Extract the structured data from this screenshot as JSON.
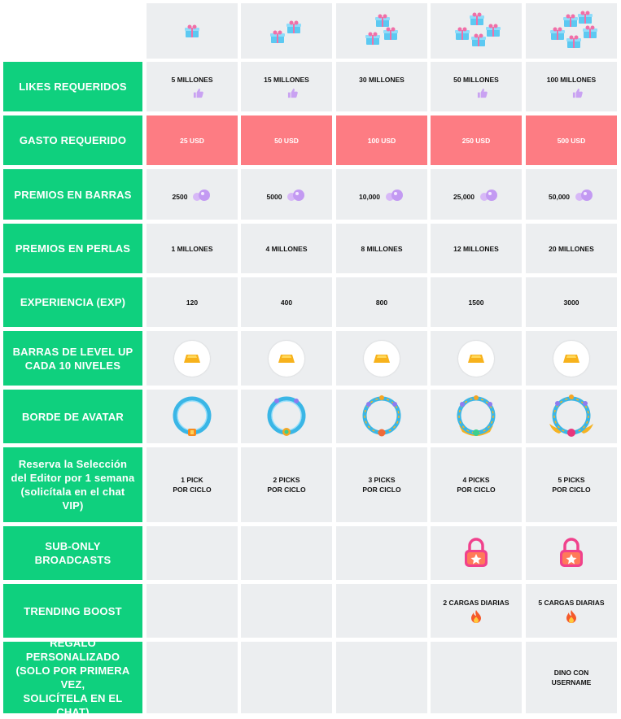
{
  "rows": {
    "likes": {
      "label": "LIKES REQUERIDOS",
      "values": [
        "5 MILLONES",
        "15 MILLONES",
        "30 MILLONES",
        "50 MILLONES",
        "100 MILLONES"
      ]
    },
    "spend": {
      "label": "GASTO REQUERIDO",
      "values": [
        "25 USD",
        "50 USD",
        "100 USD",
        "250 USD",
        "500 USD"
      ]
    },
    "bars": {
      "label": "PREMIOS EN BARRAS",
      "values": [
        "2500",
        "5000",
        "10,000",
        "25,000",
        "50,000"
      ]
    },
    "pearls": {
      "label": "PREMIOS EN PERLAS",
      "values": [
        "1 MILLONES",
        "4 MILLONES",
        "8 MILLONES",
        "12 MILLONES",
        "20 MILLONES"
      ]
    },
    "exp": {
      "label": "EXPERIENCIA (EXP)",
      "values": [
        "120",
        "400",
        "800",
        "1500",
        "3000"
      ]
    },
    "levelup": {
      "label_line1": "BARRAS DE LEVEL UP",
      "label_line2": "CADA 10 NIVELES"
    },
    "border": {
      "label": "BORDE DE AVATAR"
    },
    "editor": {
      "label_line1": "Reserva la Selección",
      "label_line2": "del Editor por 1 semana",
      "label_line3": "(solicítala en el chat",
      "label_line4": "VIP)",
      "values": [
        {
          "l1": "1 PICK",
          "l2": "POR CICLO"
        },
        {
          "l1": "2 PICKS",
          "l2": "POR CICLO"
        },
        {
          "l1": "3 PICKS",
          "l2": "POR CICLO"
        },
        {
          "l1": "4 PICKS",
          "l2": "POR CICLO"
        },
        {
          "l1": "5 PICKS",
          "l2": "POR CICLO"
        }
      ]
    },
    "subonly": {
      "label_line1": "SUB-ONLY",
      "label_line2": "BROADCASTS"
    },
    "trending": {
      "label": "TRENDING BOOST",
      "values": [
        "2 CARGAS DIARIAS",
        "5 CARGAS DIARIAS"
      ]
    },
    "gift": {
      "label_line1": "REGALO PERSONALIZADO",
      "label_line2": "(SOLO POR PRIMERA VEZ,",
      "label_line3": "SOLICÍTELA EN EL CHAT)",
      "value_line1": "DINO CON",
      "value_line2": "USERNAME"
    }
  },
  "icons": {
    "header_tiers": [
      "gift-box-icon x1",
      "gift-box-icon x2",
      "gift-box-icon x3",
      "gift-box-icon x4",
      "gift-box-icon x5"
    ],
    "likes": "thumbs-up-icon",
    "bars": "purple-bubble-icon",
    "levelup": "gold-bar-icon",
    "border": "avatar-frame-ring-icon",
    "subonly": "lock-icon",
    "trending": "fire-icon"
  },
  "colors": {
    "label_green": "#0fd07e",
    "cell_gray": "#eceef0",
    "spend_pink": "#fd7c83",
    "lock_pink": "#f0418c",
    "ring_blue": "#3ab6e6"
  }
}
